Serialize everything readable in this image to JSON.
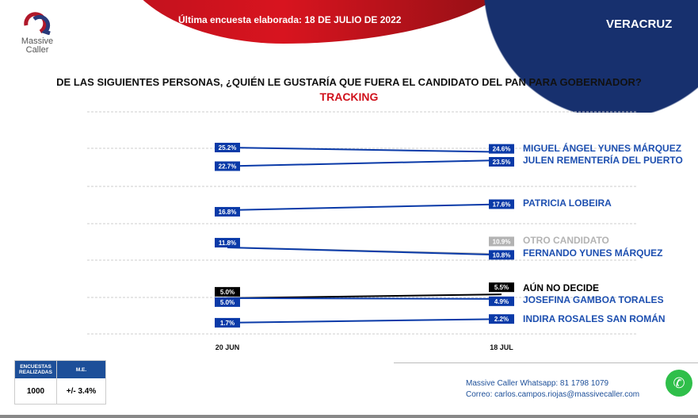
{
  "header": {
    "headline": "Última encuesta elaborada: 18 DE JULIO DE 2022",
    "region": "VERACRUZ",
    "logo_text": "Massive Caller"
  },
  "chart_data": {
    "type": "line",
    "title": "DE LAS SIGUIENTES PERSONAS, ¿QUIÉN LE GUSTARÍA QUE FUERA EL CANDIDATO  DEL PAN PARA GOBERNADOR?",
    "subtitle": "TRACKING",
    "categories": [
      "20 JUN",
      "18 JUL"
    ],
    "ylim": [
      0,
      28
    ],
    "series": [
      {
        "name": "MIGUEL ÁNGEL YUNES MÁRQUEZ",
        "values": [
          25.2,
          24.6
        ],
        "labels": [
          "25.2%",
          "24.6%"
        ],
        "color": "#0a3aa8"
      },
      {
        "name": "JULEN REMENTERÍA DEL PUERTO",
        "values": [
          22.7,
          23.5
        ],
        "labels": [
          "22.7%",
          "23.5%"
        ],
        "color": "#0a3aa8"
      },
      {
        "name": "PATRICIA LOBEIRA",
        "values": [
          16.8,
          17.6
        ],
        "labels": [
          "16.8%",
          "17.6%"
        ],
        "color": "#0a3aa8"
      },
      {
        "name": "OTRO CANDIDATO",
        "values": [
          11.8,
          10.9
        ],
        "labels": [
          "11.8%",
          "10.9%"
        ],
        "color": "#b3b3b3"
      },
      {
        "name": "FERNANDO YUNES MÁRQUEZ",
        "values": [
          11.8,
          10.8
        ],
        "labels": [
          "11.8%",
          "10.8%"
        ],
        "color": "#0a3aa8"
      },
      {
        "name": "AÚN NO DECIDE",
        "values": [
          5.0,
          5.5
        ],
        "labels": [
          "5.0%",
          "5.5%"
        ],
        "color": "#000000"
      },
      {
        "name": "JOSEFINA GAMBOA TORALES",
        "values": [
          5.0,
          4.9
        ],
        "labels": [
          "5.0%",
          "4.9%"
        ],
        "color": "#0a3aa8"
      },
      {
        "name": "INDIRA ROSALES SAN ROMÁN",
        "values": [
          1.7,
          2.2
        ],
        "labels": [
          "1.7%",
          "2.2%"
        ],
        "color": "#0a3aa8"
      }
    ]
  },
  "table": {
    "col1": "ENCUESTAS REALIZADAS",
    "col2": "M.E.",
    "val1": "1000",
    "val2": "+/- 3.4%"
  },
  "contact": {
    "whatsapp": "Massive Caller Whatsapp: 81 1798 1079",
    "email": "Correo: carlos.campos.riojas@massivecaller.com"
  }
}
